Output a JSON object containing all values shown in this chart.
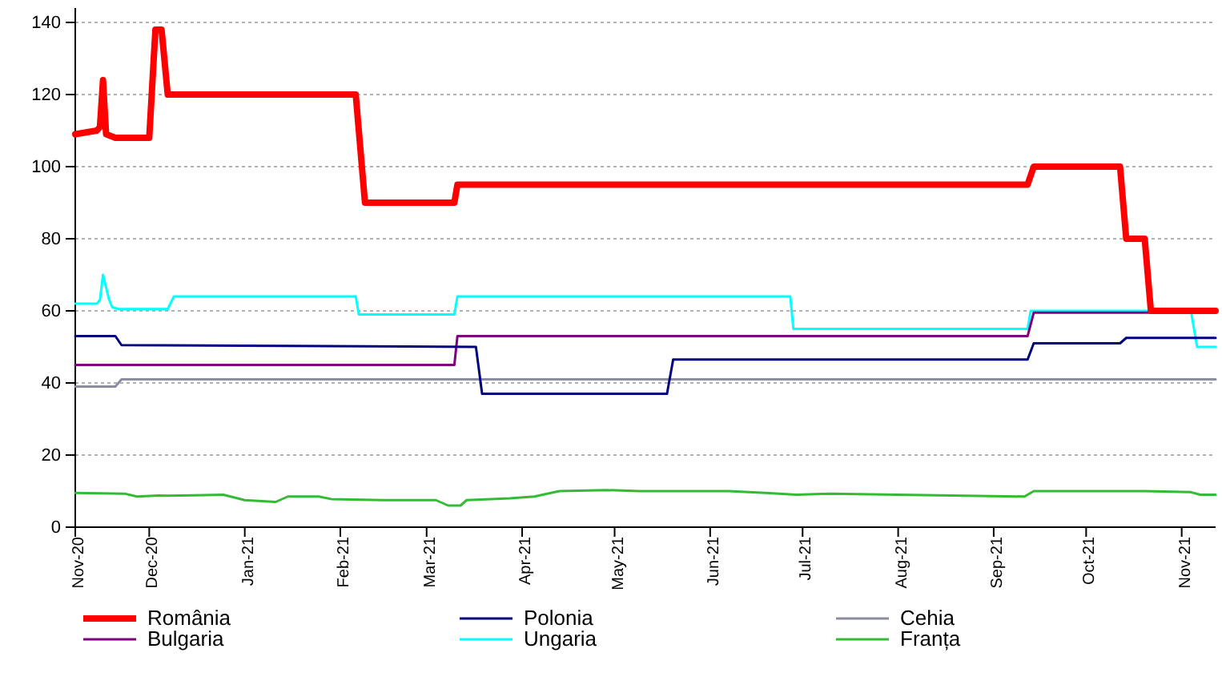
{
  "chart_data": {
    "type": "line",
    "xlim": [
      "2020-11-07",
      "2021-11-12"
    ],
    "xticks": [
      {
        "value": "2020-11-07",
        "label": "Nov-20"
      },
      {
        "value": "2020-12-01",
        "label": "Dec-20"
      },
      {
        "value": "2021-01-01",
        "label": "Jan-21"
      },
      {
        "value": "2021-02-01",
        "label": "Feb-21"
      },
      {
        "value": "2021-03-01",
        "label": "Mar-21"
      },
      {
        "value": "2021-04-01",
        "label": "Apr-21"
      },
      {
        "value": "2021-05-01",
        "label": "May-21"
      },
      {
        "value": "2021-06-01",
        "label": "Jun-21"
      },
      {
        "value": "2021-07-01",
        "label": "Jul-21"
      },
      {
        "value": "2021-08-01",
        "label": "Aug-21"
      },
      {
        "value": "2021-09-01",
        "label": "Sep-21"
      },
      {
        "value": "2021-10-01",
        "label": "Oct-21"
      },
      {
        "value": "2021-11-01",
        "label": "Nov-21"
      }
    ],
    "ylim": [
      0,
      144
    ],
    "yticks": [
      0,
      20,
      40,
      60,
      80,
      100,
      120,
      140
    ],
    "grid": "y",
    "legend": "bottom",
    "line_style": "solid",
    "marker": "none",
    "series": [
      {
        "name": "România",
        "color": "#ff0000",
        "x": [
          "2020-11-07",
          "2020-11-14",
          "2020-11-15",
          "2020-11-16",
          "2020-11-17",
          "2020-11-20",
          "2020-12-01",
          "2020-12-03",
          "2020-12-05",
          "2020-12-07",
          "2021-02-06",
          "2021-02-09",
          "2021-03-10",
          "2021-03-11",
          "2021-09-12",
          "2021-09-14",
          "2021-10-12",
          "2021-10-14",
          "2021-10-20",
          "2021-10-22",
          "2021-11-12"
        ],
        "values": [
          109,
          110,
          111,
          124,
          109,
          108,
          108,
          138,
          138,
          120,
          120,
          90,
          90,
          95,
          95,
          100,
          100,
          80,
          80,
          60,
          60
        ]
      },
      {
        "name": "Polonia",
        "color": "#000080",
        "x": [
          "2020-11-07",
          "2020-11-20",
          "2020-11-22",
          "2021-03-17",
          "2021-03-19",
          "2021-05-18",
          "2021-05-20",
          "2021-09-12",
          "2021-09-14",
          "2021-10-12",
          "2021-10-14",
          "2021-11-12"
        ],
        "values": [
          53,
          53,
          50.5,
          50,
          37,
          37,
          46.5,
          46.5,
          51,
          51,
          52.5,
          52.5
        ]
      },
      {
        "name": "Cehia",
        "color": "#8c8ca0",
        "x": [
          "2020-11-07",
          "2020-11-20",
          "2020-11-22",
          "2021-11-12"
        ],
        "values": [
          39,
          39,
          41,
          41
        ]
      },
      {
        "name": "Bulgaria",
        "color": "#800080",
        "x": [
          "2020-11-07",
          "2021-03-10",
          "2021-03-11",
          "2021-09-12",
          "2021-09-14",
          "2021-11-12"
        ],
        "values": [
          45,
          45,
          53,
          53,
          59.5,
          59.5
        ]
      },
      {
        "name": "Ungaria",
        "color": "#00ffff",
        "x": [
          "2020-11-07",
          "2020-11-14",
          "2020-11-15",
          "2020-11-16",
          "2020-11-18",
          "2020-11-19",
          "2020-11-21",
          "2020-12-07",
          "2020-12-09",
          "2021-02-06",
          "2021-02-07",
          "2021-03-10",
          "2021-03-11",
          "2021-06-27",
          "2021-06-28",
          "2021-09-12",
          "2021-09-13",
          "2021-11-04",
          "2021-11-06",
          "2021-11-12"
        ],
        "values": [
          62,
          62,
          63,
          70,
          63,
          61,
          60.5,
          60.5,
          64,
          64,
          59,
          59,
          64,
          64,
          55,
          55,
          60,
          60,
          50,
          50
        ]
      },
      {
        "name": "Franța",
        "color": "#33bb33",
        "x": [
          "2020-11-07",
          "2020-11-23",
          "2020-11-27",
          "2020-12-04",
          "2020-12-07",
          "2020-12-25",
          "2021-01-01",
          "2021-01-11",
          "2021-01-15",
          "2021-01-25",
          "2021-01-29",
          "2021-02-15",
          "2021-03-04",
          "2021-03-08",
          "2021-03-12",
          "2021-03-14",
          "2021-03-28",
          "2021-04-05",
          "2021-04-13",
          "2021-04-28",
          "2021-05-09",
          "2021-06-07",
          "2021-06-19",
          "2021-06-29",
          "2021-07-10",
          "2021-09-11",
          "2021-09-14",
          "2021-10-20",
          "2021-11-04",
          "2021-11-07",
          "2021-11-12"
        ],
        "values": [
          9.5,
          9.3,
          8.5,
          8.8,
          8.7,
          9,
          7.5,
          7,
          8.5,
          8.5,
          7.8,
          7.5,
          7.5,
          6,
          6,
          7.5,
          8,
          8.5,
          10,
          10.3,
          10,
          10,
          9.5,
          9,
          9.3,
          8.5,
          10,
          10,
          9.7,
          9,
          9
        ]
      }
    ]
  }
}
